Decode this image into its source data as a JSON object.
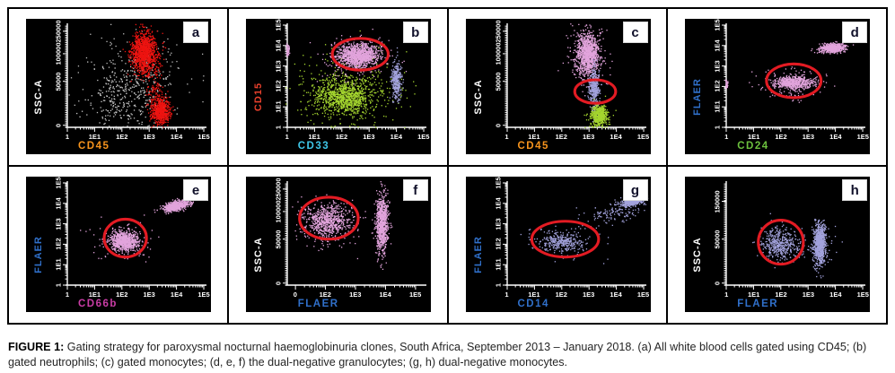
{
  "caption": {
    "label": "FIGURE 1:",
    "text": " Gating strategy for paroxysmal nocturnal haemoglobinuria clones, South Africa, September 2013 – January 2018. (a) All white blood cells gated using CD45; (b) gated neutrophils; (c) gated monocytes; (d, e, f) the dual-negative granulocytes; (g, h) dual-negative monocytes."
  },
  "palette": {
    "red_dots": "#ee1411",
    "pink_dots": "#e2a4dc",
    "green_dots": "#a5d62f",
    "lavender_dots": "#a3a3dd",
    "white_dots": "#c9c9c9",
    "gate_red": "#e31b23",
    "axis_white": "#ffffff",
    "cd45_orange": "#f7941d",
    "cd15_red": "#e8402c",
    "cd33_cyan": "#3fc8ea",
    "flaer_blue": "#3070ca",
    "cd24_green": "#6cc13e",
    "cd66b_magenta": "#ca3da6",
    "cd14_blue": "#3070ca"
  },
  "chart_data": [
    {
      "type": "scatter",
      "letter": "a",
      "seed": 11,
      "x_axis": {
        "label": "CD45",
        "color": "#f7941d",
        "scale": "log",
        "ticks": [
          {
            "label": "1",
            "pos": 0
          },
          {
            "label": "1E1",
            "pos": 0.2
          },
          {
            "label": "1E2",
            "pos": 0.4
          },
          {
            "label": "1E3",
            "pos": 0.6
          },
          {
            "label": "1E4",
            "pos": 0.8
          },
          {
            "label": "1E5",
            "pos": 1
          }
        ]
      },
      "y_axis": {
        "label": "SSC-A",
        "color": "#ffffff",
        "scale": "linear",
        "ticks": [
          {
            "label": "0",
            "pos": 0.02
          },
          {
            "label": "50000",
            "pos": 0.45
          },
          {
            "label": "100000",
            "pos": 0.72
          },
          {
            "label": "250000",
            "pos": 0.94
          }
        ]
      },
      "clusters": [
        {
          "name": "debris-white",
          "color": "#c9c9c9",
          "fx": 0.44,
          "fy": 0.34,
          "sx": 0.13,
          "sy": 0.17,
          "n": 330
        },
        {
          "name": "white-sparse",
          "color": "#bbbbbb",
          "fx": 0.52,
          "fy": 0.5,
          "sx": 0.28,
          "sy": 0.27,
          "n": 170
        },
        {
          "name": "wbc-red-top",
          "color": "#ee1411",
          "fx": 0.565,
          "fy": 0.73,
          "sx": 0.045,
          "sy": 0.1,
          "n": 1150
        },
        {
          "name": "wbc-red-bottom",
          "color": "#ee1411",
          "fx": 0.685,
          "fy": 0.16,
          "sx": 0.033,
          "sy": 0.06,
          "n": 650
        },
        {
          "name": "red-streak",
          "color": "#ee1411",
          "fx": 0.64,
          "fy": 0.44,
          "sx": 0.035,
          "sy": 0.17,
          "n": 140
        }
      ],
      "gate": null
    },
    {
      "type": "scatter",
      "letter": "b",
      "seed": 22,
      "x_axis": {
        "label": "CD33",
        "color": "#3fc8ea",
        "scale": "log",
        "ticks": [
          {
            "label": "1",
            "pos": 0
          },
          {
            "label": "1E1",
            "pos": 0.2
          },
          {
            "label": "1E2",
            "pos": 0.4
          },
          {
            "label": "1E3",
            "pos": 0.6
          },
          {
            "label": "1E4",
            "pos": 0.8
          },
          {
            "label": "1E5",
            "pos": 1
          }
        ]
      },
      "y_axis": {
        "label": "CD15",
        "color": "#e8402c",
        "scale": "log",
        "ticks": [
          {
            "label": "1",
            "pos": 0
          },
          {
            "label": "1E1",
            "pos": 0.2
          },
          {
            "label": "1E2",
            "pos": 0.4
          },
          {
            "label": "1E3",
            "pos": 0.6
          },
          {
            "label": "1E4",
            "pos": 0.8
          },
          {
            "label": "1E5",
            "pos": 1
          }
        ]
      },
      "clusters": [
        {
          "name": "monocytes-green",
          "color": "#a5d62f",
          "fx": 0.42,
          "fy": 0.3,
          "sx": 0.1,
          "sy": 0.085,
          "n": 900
        },
        {
          "name": "green-sparse",
          "color": "#a5d62f",
          "fx": 0.45,
          "fy": 0.36,
          "sx": 0.22,
          "sy": 0.19,
          "n": 380
        },
        {
          "name": "neutrophils-pink",
          "color": "#e2a4dc",
          "fx": 0.52,
          "fy": 0.7,
          "sx": 0.075,
          "sy": 0.055,
          "n": 1050
        },
        {
          "name": "pink-halo",
          "color": "#e2a4dc",
          "fx": 0.5,
          "fy": 0.68,
          "sx": 0.13,
          "sy": 0.1,
          "n": 200
        },
        {
          "name": "lavender-column",
          "color": "#a3a3dd",
          "fx": 0.8,
          "fy": 0.46,
          "sx": 0.018,
          "sy": 0.085,
          "n": 330
        },
        {
          "name": "pink-edge",
          "color": "#e2a4dc",
          "fx": 0.004,
          "fy": 0.76,
          "sx": 0.006,
          "sy": 0.03,
          "n": 60
        }
      ],
      "gate": {
        "cx": 0.535,
        "cy": 0.715,
        "rx": 0.205,
        "ry": 0.155
      }
    },
    {
      "type": "scatter",
      "letter": "c",
      "seed": 33,
      "x_axis": {
        "label": "CD45",
        "color": "#f7941d",
        "scale": "log",
        "ticks": [
          {
            "label": "1",
            "pos": 0
          },
          {
            "label": "1E1",
            "pos": 0.2
          },
          {
            "label": "1E2",
            "pos": 0.4
          },
          {
            "label": "1E3",
            "pos": 0.6
          },
          {
            "label": "1E4",
            "pos": 0.8
          },
          {
            "label": "1E5",
            "pos": 1
          }
        ]
      },
      "y_axis": {
        "label": "SSC-A",
        "color": "#ffffff",
        "scale": "linear",
        "ticks": [
          {
            "label": "0",
            "pos": 0.02
          },
          {
            "label": "50000",
            "pos": 0.45
          },
          {
            "label": "100000",
            "pos": 0.72
          },
          {
            "label": "250000",
            "pos": 0.94
          }
        ]
      },
      "clusters": [
        {
          "name": "granulocytes-pink",
          "color": "#e2a4dc",
          "fx": 0.59,
          "fy": 0.71,
          "sx": 0.04,
          "sy": 0.11,
          "n": 1050
        },
        {
          "name": "pink-sparse",
          "color": "#e2a4dc",
          "fx": 0.59,
          "fy": 0.72,
          "sx": 0.08,
          "sy": 0.15,
          "n": 150
        },
        {
          "name": "monocytes-lavender",
          "color": "#a3a3dd",
          "fx": 0.64,
          "fy": 0.37,
          "sx": 0.018,
          "sy": 0.1,
          "n": 400
        },
        {
          "name": "lymphocytes-green",
          "color": "#a5d62f",
          "fx": 0.675,
          "fy": 0.115,
          "sx": 0.032,
          "sy": 0.05,
          "n": 560
        }
      ],
      "gate": {
        "cx": 0.645,
        "cy": 0.35,
        "rx": 0.15,
        "ry": 0.115
      }
    },
    {
      "type": "scatter",
      "letter": "d",
      "seed": 44,
      "x_axis": {
        "label": "CD24",
        "color": "#6cc13e",
        "scale": "log",
        "ticks": [
          {
            "label": "1",
            "pos": 0
          },
          {
            "label": "1E1",
            "pos": 0.2
          },
          {
            "label": "1E2",
            "pos": 0.4
          },
          {
            "label": "1E3",
            "pos": 0.6
          },
          {
            "label": "1E4",
            "pos": 0.8
          },
          {
            "label": "1E5",
            "pos": 1
          }
        ]
      },
      "y_axis": {
        "label": "FLAER",
        "color": "#3070ca",
        "scale": "log",
        "ticks": [
          {
            "label": "1",
            "pos": 0
          },
          {
            "label": "1E1",
            "pos": 0.2
          },
          {
            "label": "1E2",
            "pos": 0.4
          },
          {
            "label": "1E3",
            "pos": 0.6
          },
          {
            "label": "1E4",
            "pos": 0.8
          },
          {
            "label": "1E5",
            "pos": 1
          }
        ]
      },
      "clusters": [
        {
          "name": "normal-granulocytes",
          "color": "#e2a4dc",
          "fx": 0.775,
          "fy": 0.775,
          "sx": 0.045,
          "sy": 0.024,
          "n": 560,
          "tilt": 0.3
        },
        {
          "name": "dual-negative",
          "color": "#e2a4dc",
          "fx": 0.49,
          "fy": 0.435,
          "sx": 0.07,
          "sy": 0.03,
          "n": 520
        },
        {
          "name": "dn-sparse",
          "color": "#e2a4dc",
          "fx": 0.47,
          "fy": 0.42,
          "sx": 0.13,
          "sy": 0.07,
          "n": 150
        },
        {
          "name": "edge",
          "color": "#e2a4dc",
          "fx": 0.004,
          "fy": 0.42,
          "sx": 0.005,
          "sy": 0.02,
          "n": 40
        }
      ],
      "gate": {
        "cx": 0.495,
        "cy": 0.455,
        "rx": 0.2,
        "ry": 0.165
      }
    },
    {
      "type": "scatter",
      "letter": "e",
      "seed": 55,
      "x_axis": {
        "label": "CD66b",
        "color": "#ca3da6",
        "scale": "log",
        "ticks": [
          {
            "label": "1",
            "pos": 0
          },
          {
            "label": "1E1",
            "pos": 0.2
          },
          {
            "label": "1E2",
            "pos": 0.4
          },
          {
            "label": "1E3",
            "pos": 0.6
          },
          {
            "label": "1E4",
            "pos": 0.8
          },
          {
            "label": "1E5",
            "pos": 1
          }
        ]
      },
      "y_axis": {
        "label": "FLAER",
        "color": "#3070ca",
        "scale": "log",
        "ticks": [
          {
            "label": "1",
            "pos": 0
          },
          {
            "label": "1E1",
            "pos": 0.2
          },
          {
            "label": "1E2",
            "pos": 0.4
          },
          {
            "label": "1E3",
            "pos": 0.6
          },
          {
            "label": "1E4",
            "pos": 0.8
          },
          {
            "label": "1E5",
            "pos": 1
          }
        ]
      },
      "clusters": [
        {
          "name": "normal-granulocytes",
          "color": "#e2a4dc",
          "fx": 0.8,
          "fy": 0.775,
          "sx": 0.042,
          "sy": 0.026,
          "n": 620,
          "tilt": 0.9
        },
        {
          "name": "dual-negative",
          "color": "#e2a4dc",
          "fx": 0.415,
          "fy": 0.43,
          "sx": 0.05,
          "sy": 0.048,
          "n": 720
        },
        {
          "name": "dn-sparse",
          "color": "#e2a4dc",
          "fx": 0.42,
          "fy": 0.45,
          "sx": 0.1,
          "sy": 0.09,
          "n": 150
        }
      ],
      "gate": {
        "cx": 0.425,
        "cy": 0.46,
        "rx": 0.155,
        "ry": 0.185
      }
    },
    {
      "type": "scatter",
      "letter": "f",
      "seed": 66,
      "x_axis": {
        "label": "FLAER",
        "color": "#3070ca",
        "scale": "log",
        "ticks": [
          {
            "label": "0",
            "pos": 0.06
          },
          {
            "label": "1E2",
            "pos": 0.28
          },
          {
            "label": "1E3",
            "pos": 0.5
          },
          {
            "label": "1E4",
            "pos": 0.72
          },
          {
            "label": "1E5",
            "pos": 0.94
          }
        ]
      },
      "y_axis": {
        "label": "SSC-A",
        "color": "#ffffff",
        "scale": "linear",
        "ticks": [
          {
            "label": "0",
            "pos": 0.02
          },
          {
            "label": "50000",
            "pos": 0.45
          },
          {
            "label": "100000",
            "pos": 0.72
          },
          {
            "label": "250000",
            "pos": 0.94
          }
        ]
      },
      "clusters": [
        {
          "name": "dual-negative",
          "color": "#e2a4dc",
          "fx": 0.3,
          "fy": 0.63,
          "sx": 0.075,
          "sy": 0.075,
          "n": 620
        },
        {
          "name": "dn-sparse",
          "color": "#e2a4dc",
          "fx": 0.28,
          "fy": 0.6,
          "sx": 0.13,
          "sy": 0.12,
          "n": 160
        },
        {
          "name": "normal-column",
          "color": "#e2a4dc",
          "fx": 0.695,
          "fy": 0.6,
          "sx": 0.022,
          "sy": 0.14,
          "n": 900
        }
      ],
      "gate": {
        "cx": 0.305,
        "cy": 0.655,
        "rx": 0.215,
        "ry": 0.205
      }
    },
    {
      "type": "scatter",
      "letter": "g",
      "seed": 77,
      "x_axis": {
        "label": "CD14",
        "color": "#3070ca",
        "scale": "log",
        "ticks": [
          {
            "label": "1",
            "pos": 0
          },
          {
            "label": "1E1",
            "pos": 0.2
          },
          {
            "label": "1E2",
            "pos": 0.4
          },
          {
            "label": "1E3",
            "pos": 0.6
          },
          {
            "label": "1E4",
            "pos": 0.8
          },
          {
            "label": "1E5",
            "pos": 1
          }
        ]
      },
      "y_axis": {
        "label": "FLAER",
        "color": "#3070ca",
        "scale": "log",
        "ticks": [
          {
            "label": "1",
            "pos": 0
          },
          {
            "label": "1E1",
            "pos": 0.2
          },
          {
            "label": "1E2",
            "pos": 0.4
          },
          {
            "label": "1E3",
            "pos": 0.6
          },
          {
            "label": "1E4",
            "pos": 0.8
          },
          {
            "label": "1E5",
            "pos": 1
          }
        ]
      },
      "clusters": [
        {
          "name": "normal-monocytes",
          "color": "#a3a3dd",
          "fx": 0.925,
          "fy": 0.825,
          "sx": 0.042,
          "sy": 0.028,
          "n": 560,
          "tilt": 0.8
        },
        {
          "name": "trail",
          "color": "#a3a3dd",
          "fx": 0.78,
          "fy": 0.7,
          "sx": 0.09,
          "sy": 0.05,
          "n": 120,
          "tilt": 0.8
        },
        {
          "name": "dual-negative",
          "color": "#a3a3dd",
          "fx": 0.4,
          "fy": 0.42,
          "sx": 0.075,
          "sy": 0.045,
          "n": 290
        },
        {
          "name": "dn-sparse",
          "color": "#a3a3dd",
          "fx": 0.42,
          "fy": 0.42,
          "sx": 0.15,
          "sy": 0.09,
          "n": 80
        }
      ],
      "gate": {
        "cx": 0.425,
        "cy": 0.45,
        "rx": 0.245,
        "ry": 0.175
      }
    },
    {
      "type": "scatter",
      "letter": "h",
      "seed": 88,
      "x_axis": {
        "label": "FLAER",
        "color": "#3070ca",
        "scale": "log",
        "ticks": [
          {
            "label": "1",
            "pos": 0
          },
          {
            "label": "1E1",
            "pos": 0.2
          },
          {
            "label": "1E2",
            "pos": 0.4
          },
          {
            "label": "1E3",
            "pos": 0.6
          },
          {
            "label": "1E4",
            "pos": 0.8
          },
          {
            "label": "1E5",
            "pos": 1
          }
        ]
      },
      "y_axis": {
        "label": "SSC-A",
        "color": "#ffffff",
        "scale": "linear",
        "ticks": [
          {
            "label": "0",
            "pos": 0.02
          },
          {
            "label": "50000",
            "pos": 0.45
          },
          {
            "label": "150000",
            "pos": 0.82
          }
        ]
      },
      "clusters": [
        {
          "name": "dual-negative",
          "color": "#a3a3dd",
          "fx": 0.395,
          "fy": 0.4,
          "sx": 0.065,
          "sy": 0.075,
          "n": 420
        },
        {
          "name": "normal-column",
          "color": "#a3a3dd",
          "fx": 0.685,
          "fy": 0.4,
          "sx": 0.022,
          "sy": 0.1,
          "n": 820
        },
        {
          "name": "between-sparse",
          "color": "#a3a3dd",
          "fx": 0.55,
          "fy": 0.4,
          "sx": 0.12,
          "sy": 0.08,
          "n": 60
        }
      ],
      "gate": {
        "cx": 0.4,
        "cy": 0.42,
        "rx": 0.165,
        "ry": 0.215
      }
    }
  ],
  "gate_color": "#e31b23"
}
